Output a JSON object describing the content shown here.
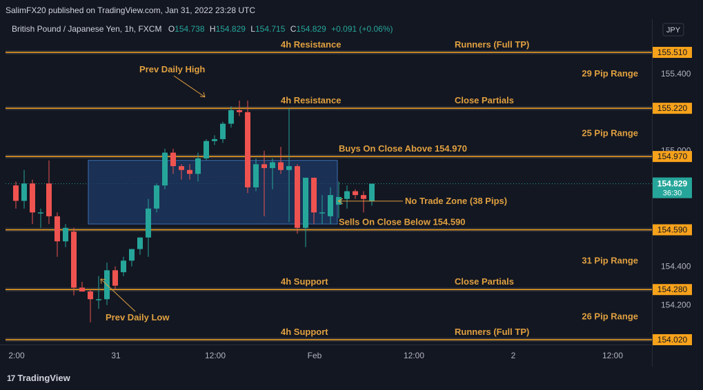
{
  "header": {
    "published": "SalimFX20 published on TradingView.com, Jan 31, 2022 23:28 UTC"
  },
  "legend": {
    "symbol": "British Pound / Japanese Yen, 1h, FXCM",
    "o_label": "O",
    "o_value": "154.738",
    "h_label": "H",
    "h_value": "154.829",
    "l_label": "L",
    "l_value": "154.715",
    "c_label": "C",
    "c_value": "154.829",
    "change": "+0.091 (+0.06%)"
  },
  "currency_badge": "JPY",
  "footer": {
    "brand": "TradingView",
    "logo_mark": "17"
  },
  "colors": {
    "background": "#131722",
    "up": "#26a69a",
    "down": "#ef5350",
    "level_line": "#f7a21b",
    "annotation_text": "#e0a040",
    "zone_fill": "#1e3a66",
    "zone_border": "#3d6fb3",
    "current_price": "#26a69a"
  },
  "chart_data": {
    "type": "candlestick",
    "symbol": "GBPJPY",
    "interval": "1h",
    "ylim": [
      154.0,
      155.65
    ],
    "y_ticks": [
      "155.400",
      "155.000",
      "154.400",
      "154.200"
    ],
    "y_tick_values": [
      155.4,
      155.0,
      154.4,
      154.2
    ],
    "x_ticks": [
      "2:00",
      "31",
      "12:00",
      "Feb",
      "12:00",
      "2",
      "12:00"
    ],
    "x_tick_slots": [
      0,
      12,
      24,
      36,
      48,
      60,
      72
    ],
    "current_price": {
      "value": "154.829",
      "countdown": "36:30"
    },
    "levels": [
      {
        "price": 155.51,
        "label": "155.510",
        "left_note": "4h Resistance",
        "right_note": "Runners (Full TP)"
      },
      {
        "price": 155.22,
        "label": "155.220",
        "left_note": "4h Resistance",
        "right_note": "Close Partials"
      },
      {
        "price": 154.97,
        "label": "154.970",
        "left_note": "Buys On Close Above 154.970",
        "right_note": ""
      },
      {
        "price": 154.59,
        "label": "154.590",
        "left_note": "Sells On Close Below 154.590",
        "right_note": ""
      },
      {
        "price": 154.28,
        "label": "154.280",
        "left_note": "4h Support",
        "right_note": "Close Partials"
      },
      {
        "price": 154.02,
        "label": "154.020",
        "left_note": "4h Support",
        "right_note": "Runners (Full TP)"
      }
    ],
    "ranges": [
      {
        "text": "29 Pip Range",
        "price": 155.4
      },
      {
        "text": "25 Pip Range",
        "price": 155.09
      },
      {
        "text": "31 Pip Range",
        "price": 154.43
      },
      {
        "text": "26 Pip Range",
        "price": 154.14
      }
    ],
    "zone": {
      "top": 154.95,
      "bottom": 154.62,
      "label": "No Trade Zone (38 Pips)"
    },
    "annotations": [
      {
        "text": "Prev Daily High",
        "slot": 23,
        "price": 155.25
      },
      {
        "text": "Prev Daily Low",
        "slot": 10,
        "price": 154.36
      }
    ],
    "candles": [
      {
        "o": 154.82,
        "h": 154.84,
        "l": 154.7,
        "c": 154.74
      },
      {
        "o": 154.74,
        "h": 154.9,
        "l": 154.7,
        "c": 154.83
      },
      {
        "o": 154.83,
        "h": 154.85,
        "l": 154.62,
        "c": 154.68
      },
      {
        "o": 154.68,
        "h": 154.7,
        "l": 154.6,
        "c": 154.68
      },
      {
        "o": 154.83,
        "h": 154.95,
        "l": 154.62,
        "c": 154.66
      },
      {
        "o": 154.66,
        "h": 154.68,
        "l": 154.45,
        "c": 154.53
      },
      {
        "o": 154.53,
        "h": 154.62,
        "l": 154.5,
        "c": 154.6
      },
      {
        "o": 154.58,
        "h": 154.6,
        "l": 154.25,
        "c": 154.29
      },
      {
        "o": 154.29,
        "h": 154.32,
        "l": 154.27,
        "c": 154.27
      },
      {
        "o": 154.27,
        "h": 154.28,
        "l": 154.11,
        "c": 154.23
      },
      {
        "o": 154.23,
        "h": 154.35,
        "l": 154.18,
        "c": 154.23
      },
      {
        "o": 154.23,
        "h": 154.42,
        "l": 154.2,
        "c": 154.38
      },
      {
        "o": 154.38,
        "h": 154.4,
        "l": 154.28,
        "c": 154.3
      },
      {
        "o": 154.37,
        "h": 154.45,
        "l": 154.35,
        "c": 154.43
      },
      {
        "o": 154.43,
        "h": 154.49,
        "l": 154.4,
        "c": 154.49
      },
      {
        "o": 154.49,
        "h": 154.55,
        "l": 154.46,
        "c": 154.55
      },
      {
        "o": 154.55,
        "h": 154.75,
        "l": 154.45,
        "c": 154.7
      },
      {
        "o": 154.7,
        "h": 154.83,
        "l": 154.68,
        "c": 154.82
      },
      {
        "o": 154.82,
        "h": 155.01,
        "l": 154.8,
        "c": 154.99
      },
      {
        "o": 154.99,
        "h": 155.01,
        "l": 154.88,
        "c": 154.92
      },
      {
        "o": 154.92,
        "h": 154.93,
        "l": 154.85,
        "c": 154.9
      },
      {
        "o": 154.9,
        "h": 154.93,
        "l": 154.85,
        "c": 154.88
      },
      {
        "o": 154.88,
        "h": 154.99,
        "l": 154.84,
        "c": 154.96
      },
      {
        "o": 154.96,
        "h": 155.06,
        "l": 154.95,
        "c": 155.05
      },
      {
        "o": 155.05,
        "h": 155.08,
        "l": 155.03,
        "c": 155.06
      },
      {
        "o": 155.06,
        "h": 155.15,
        "l": 155.04,
        "c": 155.14
      },
      {
        "o": 155.14,
        "h": 155.23,
        "l": 155.12,
        "c": 155.21
      },
      {
        "o": 155.21,
        "h": 155.26,
        "l": 155.18,
        "c": 155.2
      },
      {
        "o": 155.2,
        "h": 155.26,
        "l": 154.78,
        "c": 154.81
      },
      {
        "o": 154.81,
        "h": 154.96,
        "l": 154.79,
        "c": 154.93
      },
      {
        "o": 154.93,
        "h": 155.0,
        "l": 154.66,
        "c": 154.91
      },
      {
        "o": 154.91,
        "h": 154.96,
        "l": 154.8,
        "c": 154.94
      },
      {
        "o": 154.94,
        "h": 155.02,
        "l": 154.88,
        "c": 154.9
      },
      {
        "o": 154.9,
        "h": 155.22,
        "l": 154.63,
        "c": 154.92
      },
      {
        "o": 154.92,
        "h": 154.93,
        "l": 154.57,
        "c": 154.6
      },
      {
        "o": 154.6,
        "h": 154.85,
        "l": 154.5,
        "c": 154.86
      },
      {
        "o": 154.86,
        "h": 154.86,
        "l": 154.62,
        "c": 154.68
      },
      {
        "o": 154.68,
        "h": 154.77,
        "l": 154.62,
        "c": 154.68
      },
      {
        "o": 154.66,
        "h": 154.81,
        "l": 154.62,
        "c": 154.77
      },
      {
        "o": 154.72,
        "h": 154.84,
        "l": 154.65,
        "c": 154.76
      },
      {
        "o": 154.75,
        "h": 154.82,
        "l": 154.7,
        "c": 154.79
      },
      {
        "o": 154.79,
        "h": 154.8,
        "l": 154.75,
        "c": 154.77
      },
      {
        "o": 154.77,
        "h": 154.79,
        "l": 154.68,
        "c": 154.75
      },
      {
        "o": 154.738,
        "h": 154.829,
        "l": 154.715,
        "c": 154.829
      }
    ]
  }
}
